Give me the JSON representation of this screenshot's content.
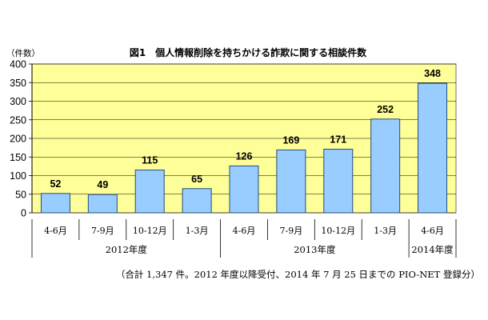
{
  "chart_data": {
    "type": "bar",
    "title": "図1　個人情報削除を持ちかける詐欺に関する相談件数",
    "unit_label": "（件数）",
    "ylim": [
      0,
      400
    ],
    "yticks": [
      0,
      50,
      100,
      150,
      200,
      250,
      300,
      350,
      400
    ],
    "grid": true,
    "categories": [
      "4-6月",
      "7-9月",
      "10-12月",
      "1-3月",
      "4-6月",
      "7-9月",
      "10-12月",
      "1-3月",
      "4-6月"
    ],
    "values": [
      52,
      49,
      115,
      65,
      126,
      169,
      171,
      252,
      348
    ],
    "groups": [
      {
        "label": "2012年度",
        "span": [
          0,
          3
        ]
      },
      {
        "label": "2013年度",
        "span": [
          4,
          7
        ]
      },
      {
        "label": "2014年度",
        "span": [
          8,
          8
        ]
      }
    ],
    "note": "（合計 1,347 件。2012 年度以降受付、2014 年 7 月 25 日までの PIO-NET 登録分）",
    "colors": {
      "plot_background": "#ffff99",
      "bar_fill": "#99ccff",
      "bar_stroke": "#1f4e79",
      "grid": "#000000"
    }
  }
}
